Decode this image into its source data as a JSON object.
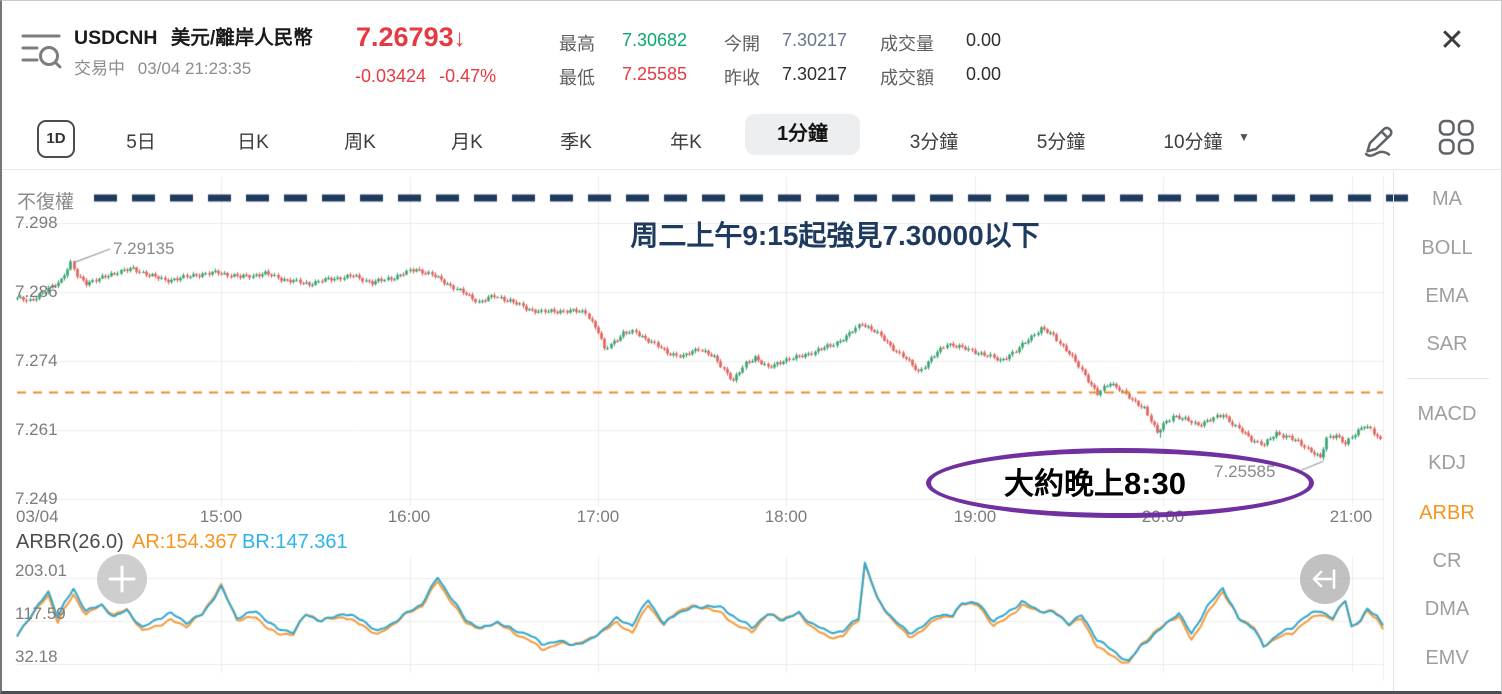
{
  "window": {
    "close_icon": "✕"
  },
  "header": {
    "symbol": "USDCNH",
    "name": "美元/離岸人民幣",
    "status": "交易中",
    "timestamp": "03/04 21:23:35",
    "price": "7.26793",
    "down_arrow": "↓",
    "change": "-0.03424",
    "change_pct": "-0.47%",
    "stats": [
      {
        "label": "最高",
        "value": "7.30682"
      },
      {
        "label": "最低",
        "value": "7.25585"
      },
      {
        "label": "今開",
        "value": "7.30217"
      },
      {
        "label": "昨收",
        "value": "7.30217"
      },
      {
        "label": "成交量",
        "value": "0.00"
      },
      {
        "label": "成交額",
        "value": "0.00"
      }
    ]
  },
  "toolbar": {
    "one_d": "1D",
    "periods": [
      "5日",
      "日K",
      "周K",
      "月K",
      "季K",
      "年K",
      "1分鐘",
      "3分鐘",
      "5分鐘",
      "10分鐘"
    ],
    "selected": "1分鐘",
    "dropdown_caret": "▼"
  },
  "main_chart": {
    "adjust_label": "不復權",
    "y_ticks": [
      "7.298",
      "7.286",
      "7.274",
      "7.261",
      "7.249"
    ],
    "x_ticks": [
      "03/04",
      "15:00",
      "16:00",
      "17:00",
      "18:00",
      "19:00",
      "20:00",
      "21:00"
    ],
    "high_point_label": "7.29135",
    "low_point_label": "7.25585",
    "annotation_line1": {
      "seg0": "周二上午",
      "seg1": "9:15",
      "seg2": "起強見",
      "seg3": "7.30000",
      "seg4": "以下"
    },
    "callout": {
      "text_zh": "大約晚上",
      "text_time": "8:30"
    }
  },
  "arbr_panel": {
    "title": "ARBR(26.0)",
    "ar_label": "AR:154.367",
    "br_label": "BR:147.361",
    "y_ticks": [
      "203.01",
      "117.59",
      "32.18"
    ]
  },
  "sidebar": {
    "items": [
      "MA",
      "BOLL",
      "EMA",
      "SAR",
      "MACD",
      "KDJ",
      "ARBR",
      "CR",
      "DMA",
      "EMV"
    ],
    "selected": "ARBR"
  },
  "buttons": {
    "plus": "+"
  },
  "colors": {
    "price_down_red": "#e53943",
    "high_green": "#0ca86e",
    "open_value_slate": "#66778f",
    "candle_up": "#35a271",
    "candle_down": "#e25f58",
    "ar_orange": "#f39b3d",
    "br_teal": "#33a7cc",
    "ar_label_orange": "#f7941d",
    "br_label_blue": "#2fb3e8",
    "annotation_navy": "#1e3a5f",
    "callout_purple": "#7030a0",
    "price_line_orange": "#ef8b2d",
    "sidebar_active_orange": "#f7941d",
    "grid_gray": "#ededed",
    "pointer_gray": "#9a9a9a"
  },
  "chart_data": [
    {
      "type": "candlestick",
      "symbol": "USDCNH",
      "interval": "1分鐘",
      "time_start": "13:55",
      "time_end": "21:10",
      "x_tick_labels": [
        "03/04",
        "15:00",
        "16:00",
        "17:00",
        "18:00",
        "19:00",
        "20:00",
        "21:00"
      ],
      "y_tick_labels": [
        7.298,
        7.286,
        7.274,
        7.261,
        7.249
      ],
      "marked_high": 7.29135,
      "marked_high_minute": 18,
      "marked_low": 7.25585,
      "marked_low_minute": 416,
      "current_price": 7.26793,
      "price_keypoints": [
        [
          0,
          7.2846
        ],
        [
          5,
          7.2843
        ],
        [
          10,
          7.2858
        ],
        [
          15,
          7.288
        ],
        [
          18,
          7.2908
        ],
        [
          20,
          7.2886
        ],
        [
          23,
          7.2874
        ],
        [
          28,
          7.2882
        ],
        [
          33,
          7.2894
        ],
        [
          38,
          7.2898
        ],
        [
          43,
          7.2888
        ],
        [
          48,
          7.2878
        ],
        [
          53,
          7.2882
        ],
        [
          58,
          7.2888
        ],
        [
          65,
          7.2892
        ],
        [
          72,
          7.2884
        ],
        [
          80,
          7.289
        ],
        [
          87,
          7.2878
        ],
        [
          94,
          7.2872
        ],
        [
          100,
          7.288
        ],
        [
          108,
          7.2886
        ],
        [
          114,
          7.2874
        ],
        [
          120,
          7.2882
        ],
        [
          128,
          7.2898
        ],
        [
          133,
          7.2888
        ],
        [
          138,
          7.2872
        ],
        [
          143,
          7.2856
        ],
        [
          148,
          7.284
        ],
        [
          153,
          7.285
        ],
        [
          158,
          7.2842
        ],
        [
          163,
          7.2828
        ],
        [
          168,
          7.2822
        ],
        [
          175,
          7.2824
        ],
        [
          182,
          7.2822
        ],
        [
          186,
          7.2786
        ],
        [
          188,
          7.2755
        ],
        [
          191,
          7.277
        ],
        [
          194,
          7.2784
        ],
        [
          198,
          7.2786
        ],
        [
          203,
          7.2768
        ],
        [
          208,
          7.275
        ],
        [
          213,
          7.2742
        ],
        [
          218,
          7.2758
        ],
        [
          223,
          7.274
        ],
        [
          229,
          7.27
        ],
        [
          233,
          7.273
        ],
        [
          236,
          7.2742
        ],
        [
          240,
          7.2722
        ],
        [
          245,
          7.2736
        ],
        [
          250,
          7.2742
        ],
        [
          255,
          7.2752
        ],
        [
          260,
          7.2762
        ],
        [
          265,
          7.2778
        ],
        [
          270,
          7.2802
        ],
        [
          274,
          7.2788
        ],
        [
          279,
          7.2762
        ],
        [
          284,
          7.2738
        ],
        [
          288,
          7.2716
        ],
        [
          293,
          7.2744
        ],
        [
          297,
          7.2766
        ],
        [
          302,
          7.2758
        ],
        [
          308,
          7.2748
        ],
        [
          314,
          7.2736
        ],
        [
          319,
          7.2752
        ],
        [
          323,
          7.2774
        ],
        [
          327,
          7.2792
        ],
        [
          331,
          7.278
        ],
        [
          336,
          7.2748
        ],
        [
          341,
          7.271
        ],
        [
          345,
          7.2676
        ],
        [
          349,
          7.2696
        ],
        [
          352,
          7.2686
        ],
        [
          356,
          7.2664
        ],
        [
          360,
          7.2652
        ],
        [
          364,
          7.2606
        ],
        [
          366,
          7.2622
        ],
        [
          369,
          7.2638
        ],
        [
          373,
          7.263
        ],
        [
          377,
          7.2622
        ],
        [
          381,
          7.263
        ],
        [
          385,
          7.264
        ],
        [
          389,
          7.2618
        ],
        [
          394,
          7.2596
        ],
        [
          398,
          7.2586
        ],
        [
          402,
          7.2606
        ],
        [
          406,
          7.26
        ],
        [
          410,
          7.2586
        ],
        [
          414,
          7.2572
        ],
        [
          416,
          7.2562
        ],
        [
          418,
          7.2596
        ],
        [
          421,
          7.2604
        ],
        [
          424,
          7.2588
        ],
        [
          427,
          7.2604
        ],
        [
          430,
          7.2622
        ],
        [
          432,
          7.2614
        ],
        [
          435,
          7.2592
        ]
      ]
    },
    {
      "type": "line",
      "title": "ARBR(26.0)",
      "y_tick_labels": [
        203.01,
        117.59,
        32.18
      ],
      "series": [
        {
          "name": "AR",
          "latest": 154.367
        },
        {
          "name": "BR",
          "latest": 147.361
        }
      ],
      "value_keypoints": [
        [
          0,
          85
        ],
        [
          5,
          130
        ],
        [
          10,
          170
        ],
        [
          13,
          123
        ],
        [
          15,
          148
        ],
        [
          18,
          178
        ],
        [
          22,
          138
        ],
        [
          27,
          150
        ],
        [
          31,
          126
        ],
        [
          35,
          138
        ],
        [
          40,
          100
        ],
        [
          45,
          118
        ],
        [
          49,
          128
        ],
        [
          54,
          112
        ],
        [
          59,
          130
        ],
        [
          65,
          186
        ],
        [
          70,
          124
        ],
        [
          76,
          134
        ],
        [
          83,
          96
        ],
        [
          88,
          92
        ],
        [
          92,
          128
        ],
        [
          97,
          118
        ],
        [
          104,
          134
        ],
        [
          110,
          118
        ],
        [
          115,
          92
        ],
        [
          120,
          110
        ],
        [
          124,
          128
        ],
        [
          129,
          150
        ],
        [
          134,
          205
        ],
        [
          139,
          158
        ],
        [
          143,
          120
        ],
        [
          148,
          100
        ],
        [
          153,
          112
        ],
        [
          158,
          94
        ],
        [
          163,
          88
        ],
        [
          167,
          70
        ],
        [
          172,
          78
        ],
        [
          177,
          72
        ],
        [
          182,
          76
        ],
        [
          186,
          95
        ],
        [
          191,
          118
        ],
        [
          196,
          104
        ],
        [
          201,
          158
        ],
        [
          206,
          110
        ],
        [
          210,
          134
        ],
        [
          215,
          144
        ],
        [
          220,
          147
        ],
        [
          225,
          139
        ],
        [
          229,
          118
        ],
        [
          234,
          100
        ],
        [
          239,
          128
        ],
        [
          244,
          120
        ],
        [
          249,
          134
        ],
        [
          253,
          114
        ],
        [
          258,
          95
        ],
        [
          263,
          92
        ],
        [
          268,
          120
        ],
        [
          270,
          228
        ],
        [
          274,
          158
        ],
        [
          279,
          120
        ],
        [
          284,
          95
        ],
        [
          288,
          105
        ],
        [
          293,
          130
        ],
        [
          298,
          124
        ],
        [
          301,
          151
        ],
        [
          306,
          147
        ],
        [
          311,
          114
        ],
        [
          315,
          130
        ],
        [
          320,
          157
        ],
        [
          325,
          140
        ],
        [
          330,
          134
        ],
        [
          335,
          110
        ],
        [
          339,
          124
        ],
        [
          344,
          76
        ],
        [
          349,
          55
        ],
        [
          354,
          36
        ],
        [
          358,
          70
        ],
        [
          363,
          95
        ],
        [
          368,
          124
        ],
        [
          370,
          130
        ],
        [
          374,
          88
        ],
        [
          379,
          140
        ],
        [
          384,
          180
        ],
        [
          389,
          120
        ],
        [
          394,
          104
        ],
        [
          397,
          66
        ],
        [
          402,
          95
        ],
        [
          406,
          100
        ],
        [
          410,
          124
        ],
        [
          415,
          132
        ],
        [
          419,
          120
        ],
        [
          423,
          155
        ],
        [
          425,
          105
        ],
        [
          428,
          120
        ],
        [
          430,
          140
        ],
        [
          433,
          130
        ],
        [
          435,
          112
        ]
      ]
    }
  ]
}
